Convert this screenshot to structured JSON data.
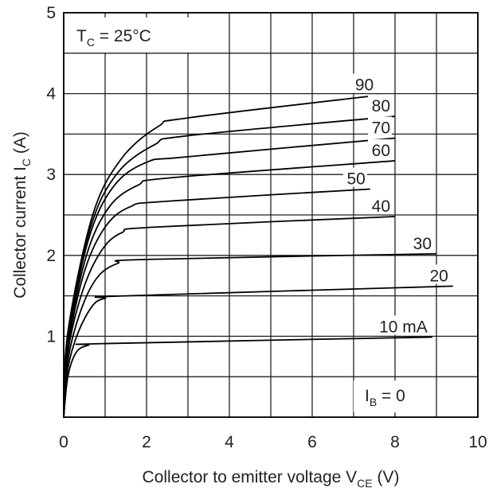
{
  "chart_data": {
    "type": "line",
    "xlabel": {
      "main": "Collector to emitter voltage  V",
      "sub": "CE",
      "unit": "  (V)"
    },
    "ylabel": {
      "main": "Collector current  I",
      "sub": "C",
      "unit": "  (A)"
    },
    "xlim": [
      0,
      10
    ],
    "ylim": [
      0,
      5
    ],
    "x_ticks": [
      "0",
      "2",
      "4",
      "6",
      "8",
      "10"
    ],
    "y_ticks": [
      "5",
      "4",
      "3",
      "2",
      "1"
    ],
    "grid": true,
    "condition": {
      "main": "T",
      "sub": "C",
      "rest": " = 25°C"
    },
    "baseline_label": {
      "main": "I",
      "sub": "B",
      "rest": " = 0"
    },
    "series": [
      {
        "name": "10 mA",
        "values": [
          [
            0,
            0
          ],
          [
            0.1,
            0.5
          ],
          [
            0.3,
            0.8
          ],
          [
            0.6,
            0.89
          ],
          [
            1,
            0.91
          ],
          [
            8.9,
            0.99
          ]
        ]
      },
      {
        "name": "20",
        "values": [
          [
            0,
            0
          ],
          [
            0.1,
            0.6
          ],
          [
            0.35,
            1.05
          ],
          [
            0.7,
            1.38
          ],
          [
            1,
            1.47
          ],
          [
            1.5,
            1.5
          ],
          [
            9.4,
            1.62
          ]
        ]
      },
      {
        "name": "30",
        "values": [
          [
            0,
            0
          ],
          [
            0.1,
            0.7
          ],
          [
            0.4,
            1.3
          ],
          [
            0.8,
            1.72
          ],
          [
            1.3,
            1.9
          ],
          [
            2,
            1.95
          ],
          [
            9,
            2.02
          ]
        ]
      },
      {
        "name": "40",
        "values": [
          [
            0,
            0
          ],
          [
            0.1,
            0.8
          ],
          [
            0.45,
            1.55
          ],
          [
            0.9,
            2.05
          ],
          [
            1.4,
            2.28
          ],
          [
            2.2,
            2.35
          ],
          [
            8,
            2.48
          ]
        ]
      },
      {
        "name": "50",
        "values": [
          [
            0,
            0
          ],
          [
            0.1,
            0.85
          ],
          [
            0.5,
            1.8
          ],
          [
            1,
            2.35
          ],
          [
            1.6,
            2.6
          ],
          [
            2.5,
            2.67
          ],
          [
            7.4,
            2.82
          ]
        ]
      },
      {
        "name": "60",
        "values": [
          [
            0,
            0
          ],
          [
            0.1,
            0.9
          ],
          [
            0.55,
            2.0
          ],
          [
            1.1,
            2.6
          ],
          [
            1.8,
            2.87
          ],
          [
            2.6,
            2.96
          ],
          [
            8,
            3.17
          ]
        ]
      },
      {
        "name": "70",
        "values": [
          [
            0,
            0
          ],
          [
            0.1,
            0.95
          ],
          [
            0.6,
            2.2
          ],
          [
            1.2,
            2.85
          ],
          [
            2,
            3.15
          ],
          [
            3,
            3.22
          ],
          [
            8,
            3.45
          ]
        ]
      },
      {
        "name": "80",
        "values": [
          [
            0,
            0
          ],
          [
            0.1,
            1.0
          ],
          [
            0.65,
            2.35
          ],
          [
            1.3,
            3.02
          ],
          [
            2.2,
            3.37
          ],
          [
            3,
            3.48
          ],
          [
            8,
            3.72
          ]
        ]
      },
      {
        "name": "90",
        "values": [
          [
            0,
            0
          ],
          [
            0.1,
            1.05
          ],
          [
            0.7,
            2.5
          ],
          [
            1.4,
            3.2
          ],
          [
            2.3,
            3.6
          ],
          [
            3,
            3.7
          ],
          [
            7.6,
            3.98
          ]
        ]
      }
    ]
  }
}
